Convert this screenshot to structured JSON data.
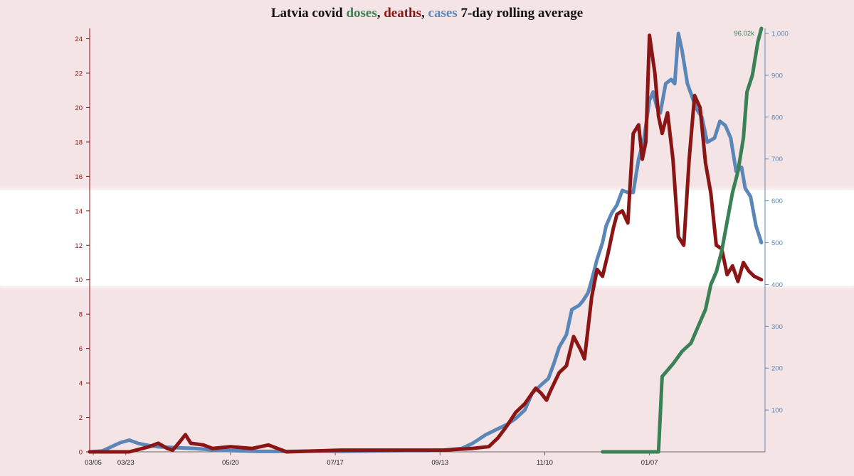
{
  "title": {
    "prefix": "Latvia covid ",
    "doses": "doses",
    "sep1": ", ",
    "deaths": "deaths",
    "sep2": ", ",
    "cases": "cases",
    "suffix": " 7-day rolling average"
  },
  "colors": {
    "doses": "#3a8155",
    "deaths": "#8b1515",
    "cases": "#5b87b8",
    "background": "#f4e4e6",
    "stripe": "#ffffff"
  },
  "chart_data": {
    "type": "line",
    "x_ticks": [
      "03/23",
      "05/20",
      "07/17",
      "09/13",
      "11/10",
      "01/07",
      "03/05"
    ],
    "x_range": [
      "2020-03-03",
      "2021-03-12"
    ],
    "left_axis": {
      "label": "deaths",
      "ylim": [
        0,
        24.6
      ],
      "ticks": [
        0,
        2,
        4,
        6,
        8,
        10,
        12,
        14,
        16,
        18,
        20,
        22,
        24
      ]
    },
    "right_axis": {
      "label": "cases",
      "ylim": [
        0,
        1012
      ],
      "ticks": [
        100,
        200,
        300,
        400,
        500,
        600,
        700,
        800,
        900,
        1000
      ]
    },
    "doses_max_label": "96.02k",
    "series": [
      {
        "name": "cases",
        "axis": "right",
        "points": [
          [
            "2020-03-03",
            0
          ],
          [
            "2020-03-10",
            2
          ],
          [
            "2020-03-15",
            12
          ],
          [
            "2020-03-20",
            22
          ],
          [
            "2020-03-25",
            28
          ],
          [
            "2020-03-30",
            20
          ],
          [
            "2020-04-05",
            15
          ],
          [
            "2020-04-10",
            12
          ],
          [
            "2020-04-20",
            10
          ],
          [
            "2020-04-30",
            8
          ],
          [
            "2020-05-10",
            5
          ],
          [
            "2020-05-20",
            3
          ],
          [
            "2020-06-05",
            1
          ],
          [
            "2020-06-20",
            1
          ],
          [
            "2020-07-10",
            2
          ],
          [
            "2020-07-20",
            1
          ],
          [
            "2020-08-05",
            2
          ],
          [
            "2020-08-25",
            3
          ],
          [
            "2020-09-05",
            3
          ],
          [
            "2020-09-15",
            4
          ],
          [
            "2020-09-25",
            8
          ],
          [
            "2020-10-01",
            20
          ],
          [
            "2020-10-08",
            40
          ],
          [
            "2020-10-15",
            55
          ],
          [
            "2020-10-20",
            65
          ],
          [
            "2020-10-25",
            80
          ],
          [
            "2020-10-30",
            100
          ],
          [
            "2020-11-03",
            140
          ],
          [
            "2020-11-08",
            160
          ],
          [
            "2020-11-12",
            175
          ],
          [
            "2020-11-15",
            210
          ],
          [
            "2020-11-18",
            250
          ],
          [
            "2020-11-22",
            280
          ],
          [
            "2020-11-25",
            340
          ],
          [
            "2020-11-29",
            350
          ],
          [
            "2020-12-01",
            360
          ],
          [
            "2020-12-04",
            380
          ],
          [
            "2020-12-06",
            410
          ],
          [
            "2020-12-09",
            460
          ],
          [
            "2020-12-12",
            500
          ],
          [
            "2020-12-14",
            540
          ],
          [
            "2020-12-17",
            570
          ],
          [
            "2020-12-20",
            590
          ],
          [
            "2020-12-23",
            625
          ],
          [
            "2020-12-26",
            620
          ],
          [
            "2020-12-29",
            620
          ],
          [
            "2021-01-01",
            700
          ],
          [
            "2021-01-04",
            750
          ],
          [
            "2021-01-07",
            840
          ],
          [
            "2021-01-09",
            860
          ],
          [
            "2021-01-11",
            825
          ],
          [
            "2021-01-13",
            810
          ],
          [
            "2021-01-16",
            880
          ],
          [
            "2021-01-19",
            890
          ],
          [
            "2021-01-21",
            880
          ],
          [
            "2021-01-23",
            1000
          ],
          [
            "2021-01-25",
            960
          ],
          [
            "2021-01-28",
            880
          ],
          [
            "2021-02-02",
            820
          ],
          [
            "2021-02-05",
            800
          ],
          [
            "2021-02-08",
            740
          ],
          [
            "2021-02-12",
            750
          ],
          [
            "2021-02-15",
            790
          ],
          [
            "2021-02-18",
            780
          ],
          [
            "2021-02-21",
            750
          ],
          [
            "2021-02-24",
            670
          ],
          [
            "2021-02-27",
            680
          ],
          [
            "2021-03-01",
            630
          ],
          [
            "2021-03-04",
            610
          ],
          [
            "2021-03-07",
            540
          ],
          [
            "2021-03-10",
            500
          ]
        ]
      },
      {
        "name": "deaths",
        "axis": "left",
        "points": [
          [
            "2020-03-03",
            0
          ],
          [
            "2020-03-25",
            0
          ],
          [
            "2020-04-05",
            0.3
          ],
          [
            "2020-04-10",
            0.5
          ],
          [
            "2020-04-15",
            0.2
          ],
          [
            "2020-04-18",
            0.1
          ],
          [
            "2020-04-22",
            0.6
          ],
          [
            "2020-04-25",
            1.0
          ],
          [
            "2020-04-28",
            0.5
          ],
          [
            "2020-05-05",
            0.4
          ],
          [
            "2020-05-10",
            0.2
          ],
          [
            "2020-05-20",
            0.3
          ],
          [
            "2020-06-01",
            0.2
          ],
          [
            "2020-06-10",
            0.4
          ],
          [
            "2020-06-15",
            0.2
          ],
          [
            "2020-06-20",
            0
          ],
          [
            "2020-07-20",
            0.1
          ],
          [
            "2020-08-15",
            0.1
          ],
          [
            "2020-09-15",
            0.1
          ],
          [
            "2020-10-01",
            0.2
          ],
          [
            "2020-10-10",
            0.3
          ],
          [
            "2020-10-15",
            0.8
          ],
          [
            "2020-10-20",
            1.5
          ],
          [
            "2020-10-25",
            2.3
          ],
          [
            "2020-10-30",
            2.8
          ],
          [
            "2020-11-05",
            3.7
          ],
          [
            "2020-11-08",
            3.4
          ],
          [
            "2020-11-11",
            3.0
          ],
          [
            "2020-11-13",
            3.5
          ],
          [
            "2020-11-18",
            4.6
          ],
          [
            "2020-11-22",
            5.0
          ],
          [
            "2020-11-26",
            6.7
          ],
          [
            "2020-11-30",
            5.9
          ],
          [
            "2020-12-02",
            5.4
          ],
          [
            "2020-12-06",
            9.0
          ],
          [
            "2020-12-09",
            10.6
          ],
          [
            "2020-12-12",
            10.2
          ],
          [
            "2020-12-15",
            11.5
          ],
          [
            "2020-12-18",
            13.0
          ],
          [
            "2020-12-20",
            13.8
          ],
          [
            "2020-12-23",
            14.0
          ],
          [
            "2020-12-26",
            13.3
          ],
          [
            "2020-12-29",
            18.5
          ],
          [
            "2021-01-01",
            19.0
          ],
          [
            "2021-01-03",
            17.0
          ],
          [
            "2021-01-05",
            18.0
          ],
          [
            "2021-01-07",
            24.2
          ],
          [
            "2021-01-10",
            22.0
          ],
          [
            "2021-01-12",
            19.5
          ],
          [
            "2021-01-14",
            18.5
          ],
          [
            "2021-01-17",
            19.7
          ],
          [
            "2021-01-20",
            17.0
          ],
          [
            "2021-01-23",
            12.5
          ],
          [
            "2021-01-26",
            12.0
          ],
          [
            "2021-01-29",
            17.0
          ],
          [
            "2021-02-01",
            20.7
          ],
          [
            "2021-02-04",
            20.0
          ],
          [
            "2021-02-07",
            16.8
          ],
          [
            "2021-02-10",
            15.0
          ],
          [
            "2021-02-13",
            12.0
          ],
          [
            "2021-02-16",
            11.8
          ],
          [
            "2021-02-19",
            10.3
          ],
          [
            "2021-02-22",
            10.8
          ],
          [
            "2021-02-25",
            9.9
          ],
          [
            "2021-02-28",
            11.0
          ],
          [
            "2021-03-03",
            10.5
          ],
          [
            "2021-03-06",
            10.2
          ],
          [
            "2021-03-10",
            10.0
          ]
        ]
      },
      {
        "name": "doses",
        "axis": "right",
        "points": [
          [
            "2020-12-12",
            0
          ],
          [
            "2021-01-12",
            0
          ],
          [
            "2021-01-14",
            180
          ],
          [
            "2021-01-20",
            210
          ],
          [
            "2021-01-25",
            240
          ],
          [
            "2021-01-30",
            260
          ],
          [
            "2021-02-03",
            300
          ],
          [
            "2021-02-07",
            340
          ],
          [
            "2021-02-10",
            400
          ],
          [
            "2021-02-13",
            430
          ],
          [
            "2021-02-16",
            480
          ],
          [
            "2021-02-19",
            550
          ],
          [
            "2021-02-22",
            620
          ],
          [
            "2021-02-25",
            670
          ],
          [
            "2021-02-28",
            750
          ],
          [
            "2021-03-02",
            860
          ],
          [
            "2021-03-05",
            900
          ],
          [
            "2021-03-08",
            980
          ],
          [
            "2021-03-10",
            1012
          ]
        ]
      }
    ]
  }
}
